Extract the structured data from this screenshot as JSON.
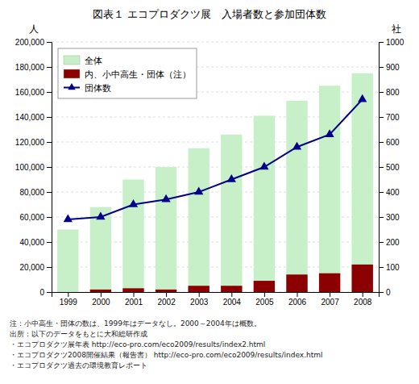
{
  "chart_data": {
    "type": "bar",
    "title": "図表１  エコプロダクツ展　入場者数と参加団体数",
    "x": [
      1999,
      2000,
      2001,
      2002,
      2003,
      2004,
      2005,
      2006,
      2007,
      2008
    ],
    "xlim": [
      1998.5,
      2008.5
    ],
    "xticks": [
      1999,
      2000,
      2001,
      2002,
      2003,
      2004,
      2005,
      2006,
      2007,
      2008
    ],
    "ylabel": "人",
    "y2label": "社",
    "ylim": [
      0,
      200000
    ],
    "yticks": [
      0,
      {
        "value": 20000,
        "label": "20,000"
      },
      {
        "value": 40000,
        "label": "40,000"
      },
      {
        "value": 60000,
        "label": "60,000"
      },
      {
        "value": 80000,
        "label": "80,000"
      },
      {
        "value": 100000,
        "label": "100,000"
      },
      {
        "value": 120000,
        "label": "120,000"
      },
      {
        "value": 140000,
        "label": "140,000"
      },
      {
        "value": 160000,
        "label": "160,000"
      },
      {
        "value": 180000,
        "label": "180,000"
      },
      {
        "value": 200000,
        "label": "200,000"
      }
    ],
    "y2lim": [
      0,
      1000
    ],
    "y2ticks": [
      0,
      100,
      200,
      300,
      400,
      500,
      600,
      700,
      800,
      900,
      1000
    ],
    "stacked": false,
    "grid": true,
    "legend": "upper left",
    "series": [
      {
        "name": "全体",
        "color": "#c8f0c8",
        "values": [
          50000,
          68000,
          90000,
          100000,
          115000,
          126000,
          141000,
          153000,
          165000,
          175000
        ]
      },
      {
        "name": "内、小中高生・団体（注）",
        "color": "#8b0000",
        "values": [
          0,
          2000,
          3000,
          2000,
          5000,
          5000,
          9000,
          14000,
          15000,
          22000
        ]
      },
      {
        "name": "団体数",
        "type": "line",
        "axis": "y2",
        "color": "#00008b",
        "marker": "triangle",
        "values": [
          290,
          300,
          350,
          370,
          400,
          450,
          500,
          580,
          630,
          770
        ]
      }
    ],
    "annotations": [
      "注：小中高生・団体の数は、1999年はデータなし。2000～2004年は概数。",
      "出所：以下のデータをもとに大和総研作成",
      "・エコプロダクツ展年表  http://eco-pro.com/eco2009/results/index2.html",
      "・エコプロダクツ2008開催結果（報告書）  http://eco-pro.com/eco2009/results/index.html",
      "・エコプロダクツ過去の環境教育レポート"
    ]
  }
}
